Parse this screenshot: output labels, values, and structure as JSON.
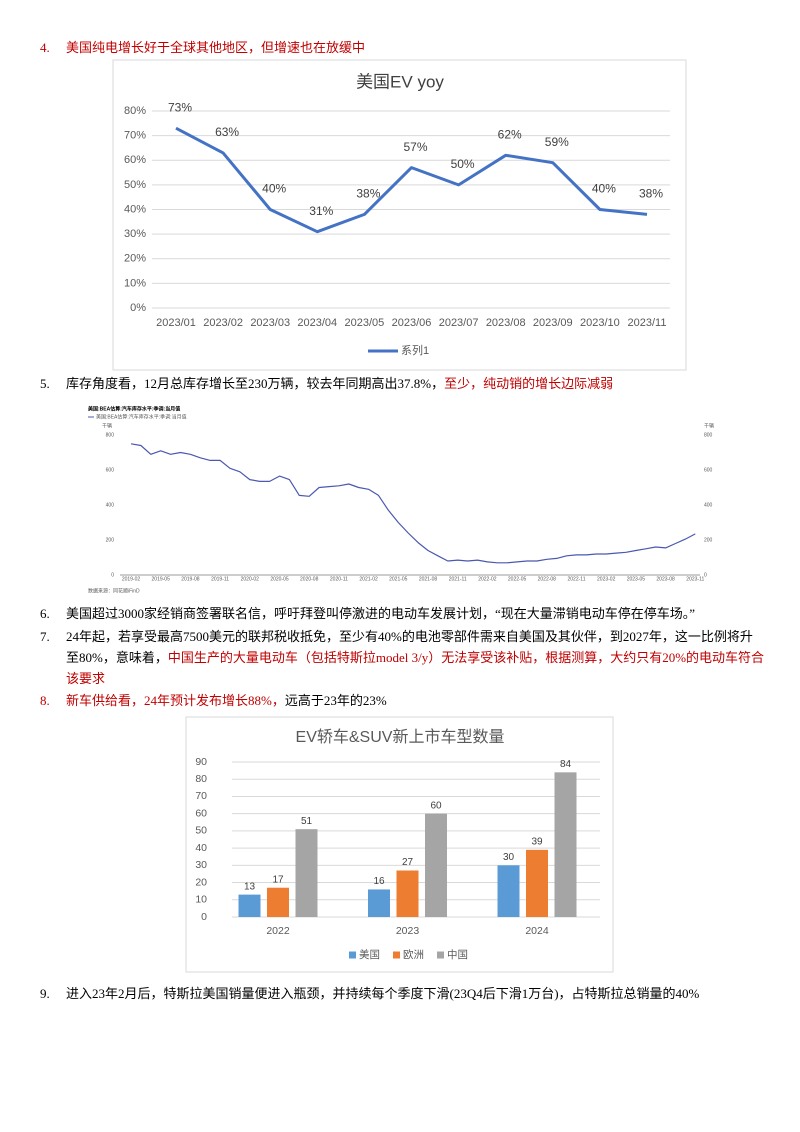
{
  "items": [
    {
      "number": "4.",
      "segments": [
        {
          "text": "美国纯电增长好于全球其他地区，但增速也在放缓中",
          "color": "#c00000"
        }
      ]
    },
    {
      "number": "5.",
      "segments": [
        {
          "text": "库存角度看，12月总库存增长至230万辆，较去年同期高出37.8%，",
          "color": "#000000"
        },
        {
          "text": "至少，纯动销的增长边际减弱",
          "color": "#c00000"
        }
      ]
    },
    {
      "number": "6.",
      "segments": [
        {
          "text": "美国超过3000家经销商签署联名信，呼吁拜登叫停激进的电动车发展计划，“现在大量滞销电动车停在停车场。”",
          "color": "#000000"
        }
      ]
    },
    {
      "number": "7.",
      "segments": [
        {
          "text": "24年起，若享受最高7500美元的联邦税收抵免，至少有40%的电池零部件需来自美国及其伙伴，到2027年，这一比例将升至80%，意味着，",
          "color": "#000000"
        },
        {
          "text": "中国生产的大量电动车（包括特斯拉model 3/y）无法享受该补贴，根据测算，大约只有20%的电动车符合该要求",
          "color": "#c00000"
        }
      ]
    },
    {
      "number": "8.",
      "segments": [
        {
          "text": "新车供给看，24年预计发布增长88%，",
          "color": "#c00000"
        },
        {
          "text": "远高于23年的23%",
          "color": "#000000"
        }
      ]
    },
    {
      "number": "9.",
      "segments": [
        {
          "text": "进入23年2月后，特斯拉美国销量便进入瓶颈，并持续每个季度下滑(23Q4后下滑1万台)，占特斯拉总销量的40%",
          "color": "#000000"
        }
      ]
    }
  ],
  "chart_data": [
    {
      "type": "line",
      "title": "美国EV  yoy",
      "categories": [
        "2023/01",
        "2023/02",
        "2023/03",
        "2023/04",
        "2023/05",
        "2023/06",
        "2023/07",
        "2023/08",
        "2023/09",
        "2023/10",
        "2023/11"
      ],
      "series": [
        {
          "name": "系列1",
          "color": "#4472c4",
          "values": [
            73,
            63,
            40,
            31,
            38,
            57,
            50,
            62,
            59,
            40,
            38
          ],
          "value_labels": [
            "73%",
            "63%",
            "40%",
            "31%",
            "38%",
            "57%",
            "50%",
            "62%",
            "59%",
            "40%",
            "38%"
          ]
        }
      ],
      "ylim": [
        0,
        80
      ],
      "yticks": [
        {
          "value": 0,
          "label": "0%"
        },
        {
          "value": 10,
          "label": "10%"
        },
        {
          "value": 20,
          "label": "20%"
        },
        {
          "value": 30,
          "label": "30%"
        },
        {
          "value": 40,
          "label": "40%"
        },
        {
          "value": 50,
          "label": "50%"
        },
        {
          "value": 60,
          "label": "60%"
        },
        {
          "value": 70,
          "label": "70%"
        },
        {
          "value": 80,
          "label": "80%"
        }
      ],
      "grid": true,
      "legend": "bottom"
    },
    {
      "type": "line",
      "title": "美国:BEA估算:汽车库存水平:季调:当月值",
      "categories": [
        "2019-02",
        null,
        null,
        "2019-05",
        null,
        null,
        "2019-08",
        null,
        null,
        "2019-11",
        null,
        null,
        "2020-02",
        null,
        null,
        "2020-05",
        null,
        null,
        "2020-08",
        null,
        null,
        "2020-11",
        null,
        null,
        "2021-02",
        null,
        null,
        "2021-05",
        null,
        null,
        "2021-08",
        null,
        null,
        "2021-11",
        null,
        null,
        "2022-02",
        null,
        null,
        "2022-05",
        null,
        null,
        "2022-08",
        null,
        null,
        "2022-11",
        null,
        null,
        "2023-02",
        null,
        null,
        "2023-05",
        null,
        null,
        "2023-08",
        null,
        null,
        "2023-11"
      ],
      "series": [
        {
          "name": "美国:BEA估算:汽车库存水平:季调:当月值",
          "color": "#4a58b0",
          "values": [
            750,
            740,
            690,
            710,
            690,
            700,
            690,
            670,
            655,
            655,
            610,
            590,
            545,
            535,
            535,
            565,
            545,
            455,
            450,
            500,
            505,
            510,
            520,
            500,
            490,
            455,
            370,
            300,
            240,
            185,
            140,
            110,
            80,
            85,
            80,
            85,
            75,
            70,
            70,
            75,
            80,
            80,
            90,
            95,
            110,
            115,
            115,
            120,
            120,
            125,
            130,
            140,
            150,
            160,
            155,
            180,
            205,
            235
          ]
        }
      ],
      "y_label": "千辆",
      "y2_label": "千辆",
      "ylim": [
        0,
        800
      ],
      "yticks": [
        0,
        200,
        400,
        600,
        800
      ],
      "y2lim": [
        0,
        800
      ],
      "y2ticks": [
        0,
        200,
        400,
        600,
        800
      ],
      "grid": false,
      "legend": "top-left",
      "source": "数据来源：同花顺iFinD"
    },
    {
      "type": "bar",
      "title": "EV轿车&SUV新上市车型数量",
      "categories": [
        "2022",
        "2023",
        "2024"
      ],
      "series": [
        {
          "name": "美国",
          "color": "#5b9bd5",
          "values": [
            13,
            16,
            30
          ]
        },
        {
          "name": "欧洲",
          "color": "#ed7d31",
          "values": [
            17,
            27,
            39
          ]
        },
        {
          "name": "中国",
          "color": "#a5a5a5",
          "values": [
            51,
            60,
            84
          ]
        }
      ],
      "ylim": [
        0,
        90
      ],
      "yticks": [
        0,
        10,
        20,
        30,
        40,
        50,
        60,
        70,
        80,
        90
      ],
      "grid": true,
      "legend": "bottom"
    }
  ]
}
